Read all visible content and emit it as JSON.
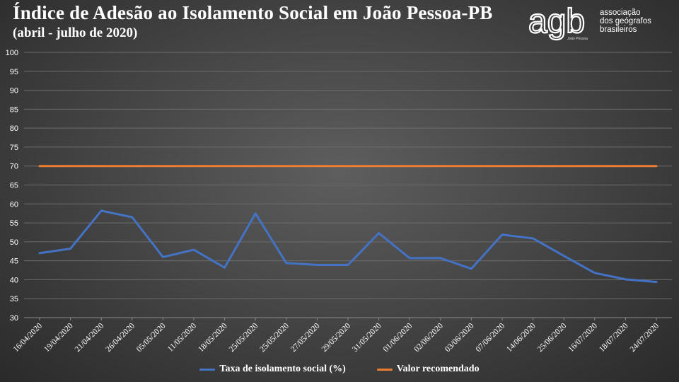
{
  "header": {
    "title": "Índice de Adesão ao Isolamento Social em João Pessoa-PB",
    "subtitle": "(abril - julho de 2020)"
  },
  "logo": {
    "mark": "agb",
    "text_line1": "associação",
    "text_line2": "dos geógrafos",
    "text_line3": "brasileiros",
    "sub": "João Pessoa"
  },
  "colors": {
    "series_isolation": "#4472c4",
    "series_recommended": "#ed7d31"
  },
  "chart_data": {
    "type": "line",
    "title": "Índice de Adesão ao Isolamento Social em João Pessoa-PB",
    "subtitle": "(abril - julho de 2020)",
    "categories": [
      "16/04/2020",
      "19/04/2020",
      "21/04/2020",
      "26/04/2020",
      "05/05/2020",
      "11/05/2020",
      "18/05/2020",
      "25/05/2020",
      "25/05/2020",
      "27/05/2020",
      "29/05/2020",
      "31/05/2020",
      "01/06/2020",
      "02/06/2020",
      "03/06/2020",
      "07/06/2020",
      "14/06/2020",
      "25/06/2020",
      "16/07/2020",
      "18/07/2020",
      "24/07/2020"
    ],
    "series": [
      {
        "name": "Taxa de isolamento social (%)",
        "color": "#4472c4",
        "values": [
          47.0,
          48.2,
          58.2,
          56.5,
          46.0,
          47.9,
          43.2,
          57.5,
          44.4,
          43.9,
          43.9,
          52.3,
          45.7,
          45.7,
          42.9,
          51.9,
          50.9,
          46.3,
          41.8,
          40.1,
          39.4
        ]
      },
      {
        "name": "Valor recomendado",
        "color": "#ed7d31",
        "values": [
          70,
          70,
          70,
          70,
          70,
          70,
          70,
          70,
          70,
          70,
          70,
          70,
          70,
          70,
          70,
          70,
          70,
          70,
          70,
          70,
          70
        ]
      }
    ],
    "ylim": [
      30,
      100
    ],
    "yticks": [
      30,
      35,
      40,
      45,
      50,
      55,
      60,
      65,
      70,
      75,
      80,
      85,
      90,
      95,
      100
    ],
    "grid": true,
    "legend": "bottom",
    "xlabel": "",
    "ylabel": ""
  }
}
